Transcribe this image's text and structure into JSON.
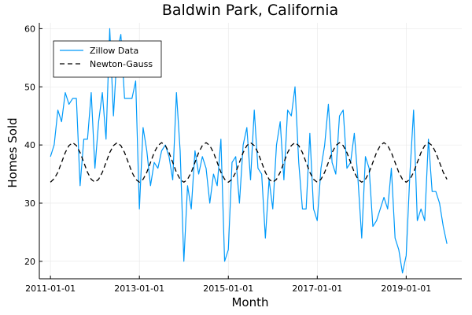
{
  "chart_data": {
    "type": "line",
    "title": "Baldwin Park, California",
    "xlabel": "Month",
    "ylabel": "Homes Sold",
    "x_start": "2011-01-01",
    "x_step": "1 month",
    "xlim": [
      "2010-10-01",
      "2020-04-01"
    ],
    "ylim": [
      17,
      61
    ],
    "xticks": [
      "2011-01-01",
      "2013-01-01",
      "2015-01-01",
      "2017-01-01",
      "2019-01-01"
    ],
    "yticks": [
      20,
      30,
      40,
      50,
      60
    ],
    "grid": true,
    "legend_position": "top-left",
    "series": [
      {
        "name": "Zillow Data",
        "style": "solid",
        "color": "#009AFA",
        "values": [
          38,
          40,
          46,
          44,
          49,
          47,
          48,
          48,
          33,
          41,
          41,
          49,
          36,
          44,
          49,
          41,
          60,
          45,
          56,
          59,
          48,
          48,
          48,
          51,
          29,
          43,
          39,
          33,
          37,
          36,
          39,
          40,
          38,
          34,
          49,
          39,
          20,
          33,
          29,
          39,
          35,
          38,
          36,
          30,
          35,
          33,
          41,
          20,
          22,
          37,
          38,
          30,
          40,
          43,
          34,
          46,
          36,
          35,
          24,
          34,
          29,
          40,
          44,
          34,
          46,
          45,
          50,
          37,
          29,
          29,
          42,
          29,
          27,
          36,
          40,
          47,
          37,
          35,
          45,
          46,
          36,
          37,
          42,
          34,
          24,
          38,
          36,
          26,
          27,
          29,
          31,
          29,
          36,
          24,
          22,
          18,
          21,
          35,
          46,
          27,
          29,
          27,
          41,
          32,
          32,
          30,
          26,
          23
        ]
      },
      {
        "name": "Newton-Gauss",
        "style": "dashed",
        "color": "#000000",
        "mean": 37,
        "amplitude": 3.4,
        "period_months": 12,
        "peak_month_offset": 3,
        "values": [
          33.6,
          34.2,
          35.3,
          37.0,
          38.7,
          39.9,
          40.4,
          39.9,
          38.7,
          37.0,
          35.3,
          34.1,
          33.6,
          34.1,
          35.3,
          37.0,
          38.7,
          39.9,
          40.4,
          39.9,
          38.7,
          37.0,
          35.3,
          34.1,
          33.6,
          34.1,
          35.3,
          37.0,
          38.7,
          39.9,
          40.4,
          39.9,
          38.7,
          37.0,
          35.3,
          34.1,
          33.6,
          34.1,
          35.3,
          37.0,
          38.7,
          39.9,
          40.4,
          39.9,
          38.7,
          37.0,
          35.3,
          34.1,
          33.6,
          34.1,
          35.3,
          37.0,
          38.7,
          39.9,
          40.4,
          39.9,
          38.7,
          37.0,
          35.3,
          34.1,
          33.6,
          34.1,
          35.3,
          37.0,
          38.7,
          39.9,
          40.4,
          39.9,
          38.7,
          37.0,
          35.3,
          34.1,
          33.6,
          34.1,
          35.3,
          37.0,
          38.7,
          39.9,
          40.4,
          39.9,
          38.7,
          37.0,
          35.3,
          34.1,
          33.6,
          34.1,
          35.3,
          37.0,
          38.7,
          39.9,
          40.4,
          39.9,
          38.7,
          37.0,
          35.3,
          34.1,
          33.6,
          34.1,
          35.3,
          37.0,
          38.7,
          39.9,
          40.4,
          39.9,
          38.7,
          37.0,
          35.3,
          34.1
        ]
      }
    ]
  }
}
